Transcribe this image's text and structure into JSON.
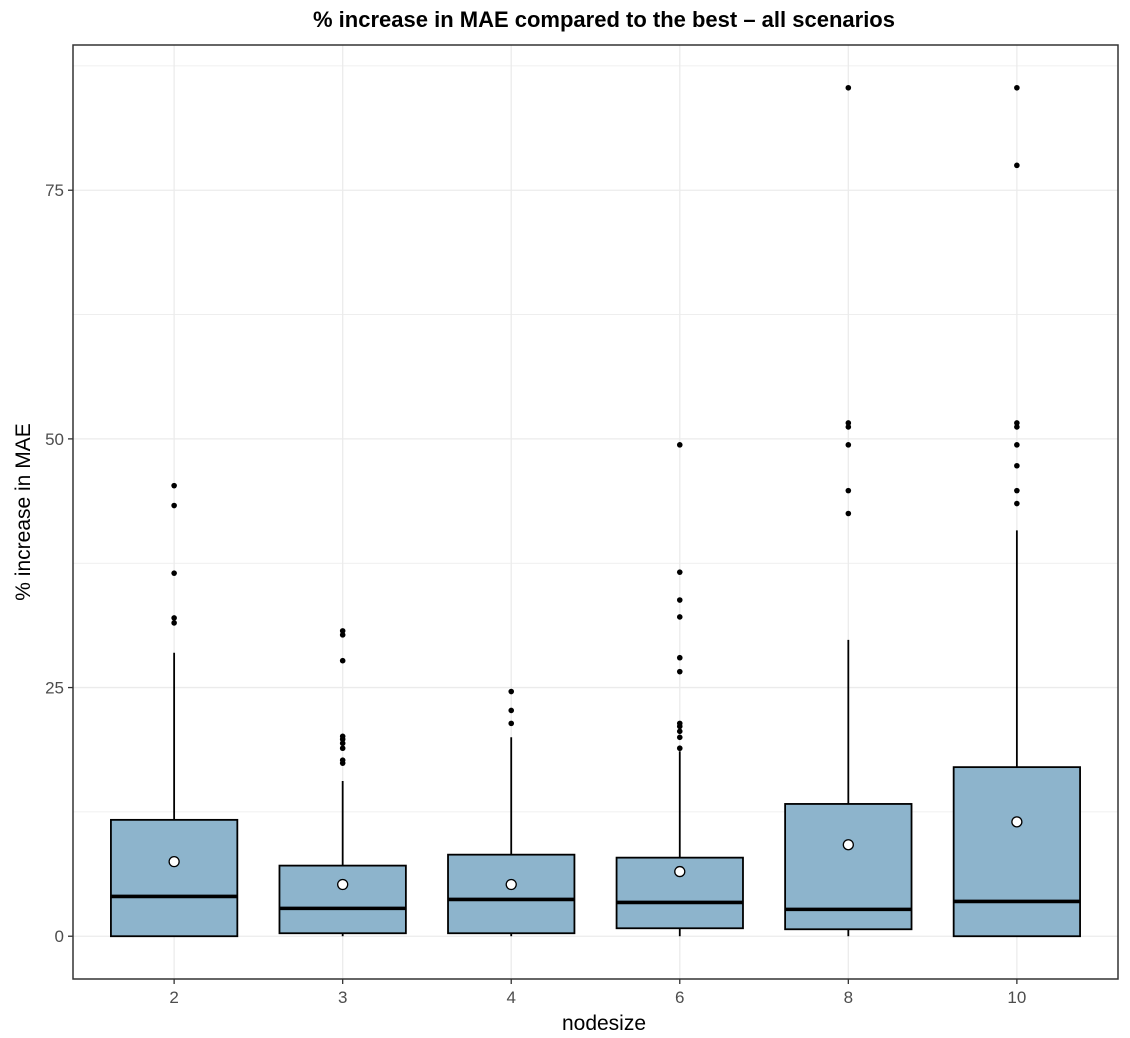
{
  "chart_data": {
    "type": "boxplot",
    "title": "% increase in MAE compared to the best – all scenarios",
    "xlabel": "nodesize",
    "ylabel": "% increase in MAE",
    "categories": [
      "2",
      "3",
      "4",
      "6",
      "8",
      "10"
    ],
    "y_ticks": [
      0,
      25,
      50,
      75
    ],
    "y_tick_labels": [
      "0",
      "25",
      "50",
      "75"
    ],
    "ylim": [
      -4.3,
      89.6
    ],
    "grid": true,
    "colors": {
      "box_fill": "#8db4cc",
      "box_stroke": "#000000",
      "grid": "#ebebeb",
      "mean_fill": "#ffffff"
    },
    "boxes": [
      {
        "category": "2",
        "q1": 0.0,
        "median": 4.0,
        "q3": 11.7,
        "whisker_low": 0.0,
        "whisker_high": 28.5,
        "mean": 7.5,
        "outliers": [
          31.5,
          32.0,
          36.5,
          43.3,
          45.3
        ]
      },
      {
        "category": "3",
        "q1": 0.3,
        "median": 2.8,
        "q3": 7.1,
        "whisker_low": 0.0,
        "whisker_high": 15.6,
        "mean": 5.2,
        "outliers": [
          17.4,
          17.7,
          18.9,
          19.4,
          19.8,
          20.1,
          27.7,
          30.3,
          30.7
        ]
      },
      {
        "category": "4",
        "q1": 0.3,
        "median": 3.7,
        "q3": 8.2,
        "whisker_low": 0.0,
        "whisker_high": 20.0,
        "mean": 5.2,
        "outliers": [
          21.4,
          22.7,
          24.6
        ]
      },
      {
        "category": "6",
        "q1": 0.8,
        "median": 3.4,
        "q3": 7.9,
        "whisker_low": 0.0,
        "whisker_high": 18.6,
        "mean": 6.5,
        "outliers": [
          18.9,
          20.0,
          20.6,
          21.1,
          21.4,
          26.6,
          28.0,
          32.1,
          33.8,
          36.6,
          49.4
        ]
      },
      {
        "category": "8",
        "q1": 0.7,
        "median": 2.7,
        "q3": 13.3,
        "whisker_low": 0.0,
        "whisker_high": 29.8,
        "mean": 9.2,
        "outliers": [
          42.5,
          44.8,
          49.4,
          51.2,
          51.6,
          85.3
        ]
      },
      {
        "category": "10",
        "q1": 0.0,
        "median": 3.5,
        "q3": 17.0,
        "whisker_low": 0.0,
        "whisker_high": 40.8,
        "mean": 11.5,
        "outliers": [
          43.5,
          44.8,
          47.3,
          49.4,
          51.2,
          51.6,
          77.5,
          85.3
        ]
      }
    ]
  }
}
